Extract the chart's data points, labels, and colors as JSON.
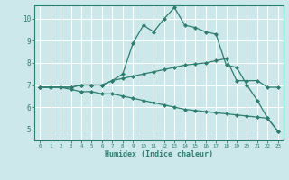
{
  "xlabel": "Humidex (Indice chaleur)",
  "background_color": "#cce8ea",
  "grid_color": "#ffffff",
  "line_color": "#2e7d6e",
  "xlim": [
    -0.5,
    23.5
  ],
  "ylim": [
    4.5,
    10.6
  ],
  "xticks": [
    0,
    1,
    2,
    3,
    4,
    5,
    6,
    7,
    8,
    9,
    10,
    11,
    12,
    13,
    14,
    15,
    16,
    17,
    18,
    19,
    20,
    21,
    22,
    23
  ],
  "yticks": [
    5,
    6,
    7,
    8,
    9,
    10
  ],
  "line1_x": [
    0,
    1,
    2,
    3,
    4,
    5,
    6,
    7,
    8,
    9,
    10,
    11,
    12,
    13,
    14,
    15,
    16,
    17,
    18,
    19,
    20,
    21,
    22,
    23
  ],
  "line1_y": [
    6.9,
    6.9,
    6.9,
    6.9,
    7.0,
    7.0,
    7.0,
    7.2,
    7.5,
    8.9,
    9.7,
    9.4,
    10.0,
    10.5,
    9.7,
    9.6,
    9.4,
    9.3,
    7.9,
    7.8,
    7.0,
    6.3,
    5.5,
    4.9
  ],
  "line2_x": [
    0,
    1,
    2,
    3,
    4,
    5,
    6,
    7,
    8,
    9,
    10,
    11,
    12,
    13,
    14,
    15,
    16,
    17,
    18,
    19,
    20,
    21,
    22,
    23
  ],
  "line2_y": [
    6.9,
    6.9,
    6.9,
    6.9,
    7.0,
    7.0,
    7.0,
    7.2,
    7.3,
    7.4,
    7.5,
    7.6,
    7.7,
    7.8,
    7.9,
    7.95,
    8.0,
    8.1,
    8.2,
    7.2,
    7.2,
    7.2,
    6.9,
    6.9
  ],
  "line3_x": [
    0,
    1,
    2,
    3,
    4,
    5,
    6,
    7,
    8,
    9,
    10,
    11,
    12,
    13,
    14,
    15,
    16,
    17,
    18,
    19,
    20,
    21,
    22,
    23
  ],
  "line3_y": [
    6.9,
    6.9,
    6.9,
    6.8,
    6.7,
    6.7,
    6.6,
    6.6,
    6.5,
    6.4,
    6.3,
    6.2,
    6.1,
    6.0,
    5.9,
    5.85,
    5.8,
    5.75,
    5.7,
    5.65,
    5.6,
    5.55,
    5.5,
    4.9
  ]
}
